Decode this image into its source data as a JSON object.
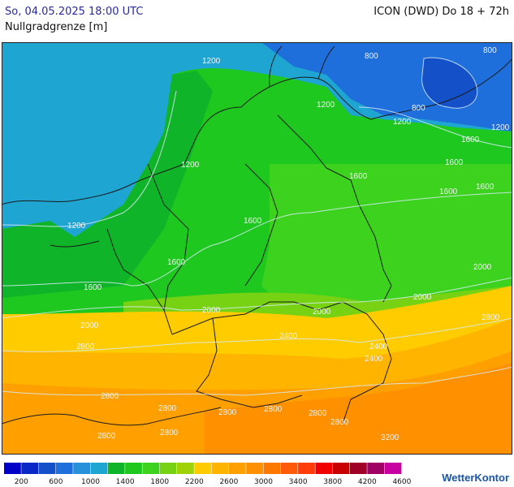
{
  "header": {
    "date": "So, 04.05.2025 18:00 UTC",
    "model": "ICON (DWD) Do 18 + 72h",
    "parameter": "Nullgradgrenze [m]"
  },
  "map": {
    "contours": [
      {
        "label": "1200"
      },
      {
        "label": "800"
      },
      {
        "label": "800"
      },
      {
        "label": "800"
      },
      {
        "label": "1200"
      },
      {
        "label": "1200"
      },
      {
        "label": "1200"
      },
      {
        "label": "1200"
      },
      {
        "label": "1200"
      },
      {
        "label": "1600"
      },
      {
        "label": "1600"
      },
      {
        "label": "1600"
      },
      {
        "label": "1600"
      },
      {
        "label": "1600"
      },
      {
        "label": "1600"
      },
      {
        "label": "1600"
      },
      {
        "label": "1600"
      },
      {
        "label": "2000"
      },
      {
        "label": "2000"
      },
      {
        "label": "2000"
      },
      {
        "label": "2000"
      },
      {
        "label": "2000"
      },
      {
        "label": "2800"
      },
      {
        "label": "2400"
      },
      {
        "label": "2400"
      },
      {
        "label": "2400"
      },
      {
        "label": "2800"
      },
      {
        "label": "2800"
      },
      {
        "label": "2800"
      },
      {
        "label": "2800"
      },
      {
        "label": "2800"
      },
      {
        "label": "2800"
      },
      {
        "label": "3200"
      },
      {
        "label": "2800"
      },
      {
        "label": "2800"
      },
      {
        "label": "2800"
      }
    ]
  },
  "legend": {
    "colors": [
      "#0000c8",
      "#0a28c8",
      "#1450c8",
      "#1e6edc",
      "#2891dc",
      "#1ea5d2",
      "#10b428",
      "#1ec81e",
      "#3cd21e",
      "#78d214",
      "#a0d20a",
      "#ffcc00",
      "#ffb400",
      "#ffa000",
      "#ff9000",
      "#ff7800",
      "#ff5a0a",
      "#ff3c0a",
      "#f00000",
      "#c80000",
      "#a00028",
      "#a00064",
      "#c800a0"
    ],
    "ticks": [
      "200",
      "600",
      "1000",
      "1400",
      "1800",
      "2200",
      "2600",
      "3000",
      "3400",
      "3800",
      "4200",
      "4600"
    ]
  },
  "logo": {
    "text": "WetterKontor"
  }
}
